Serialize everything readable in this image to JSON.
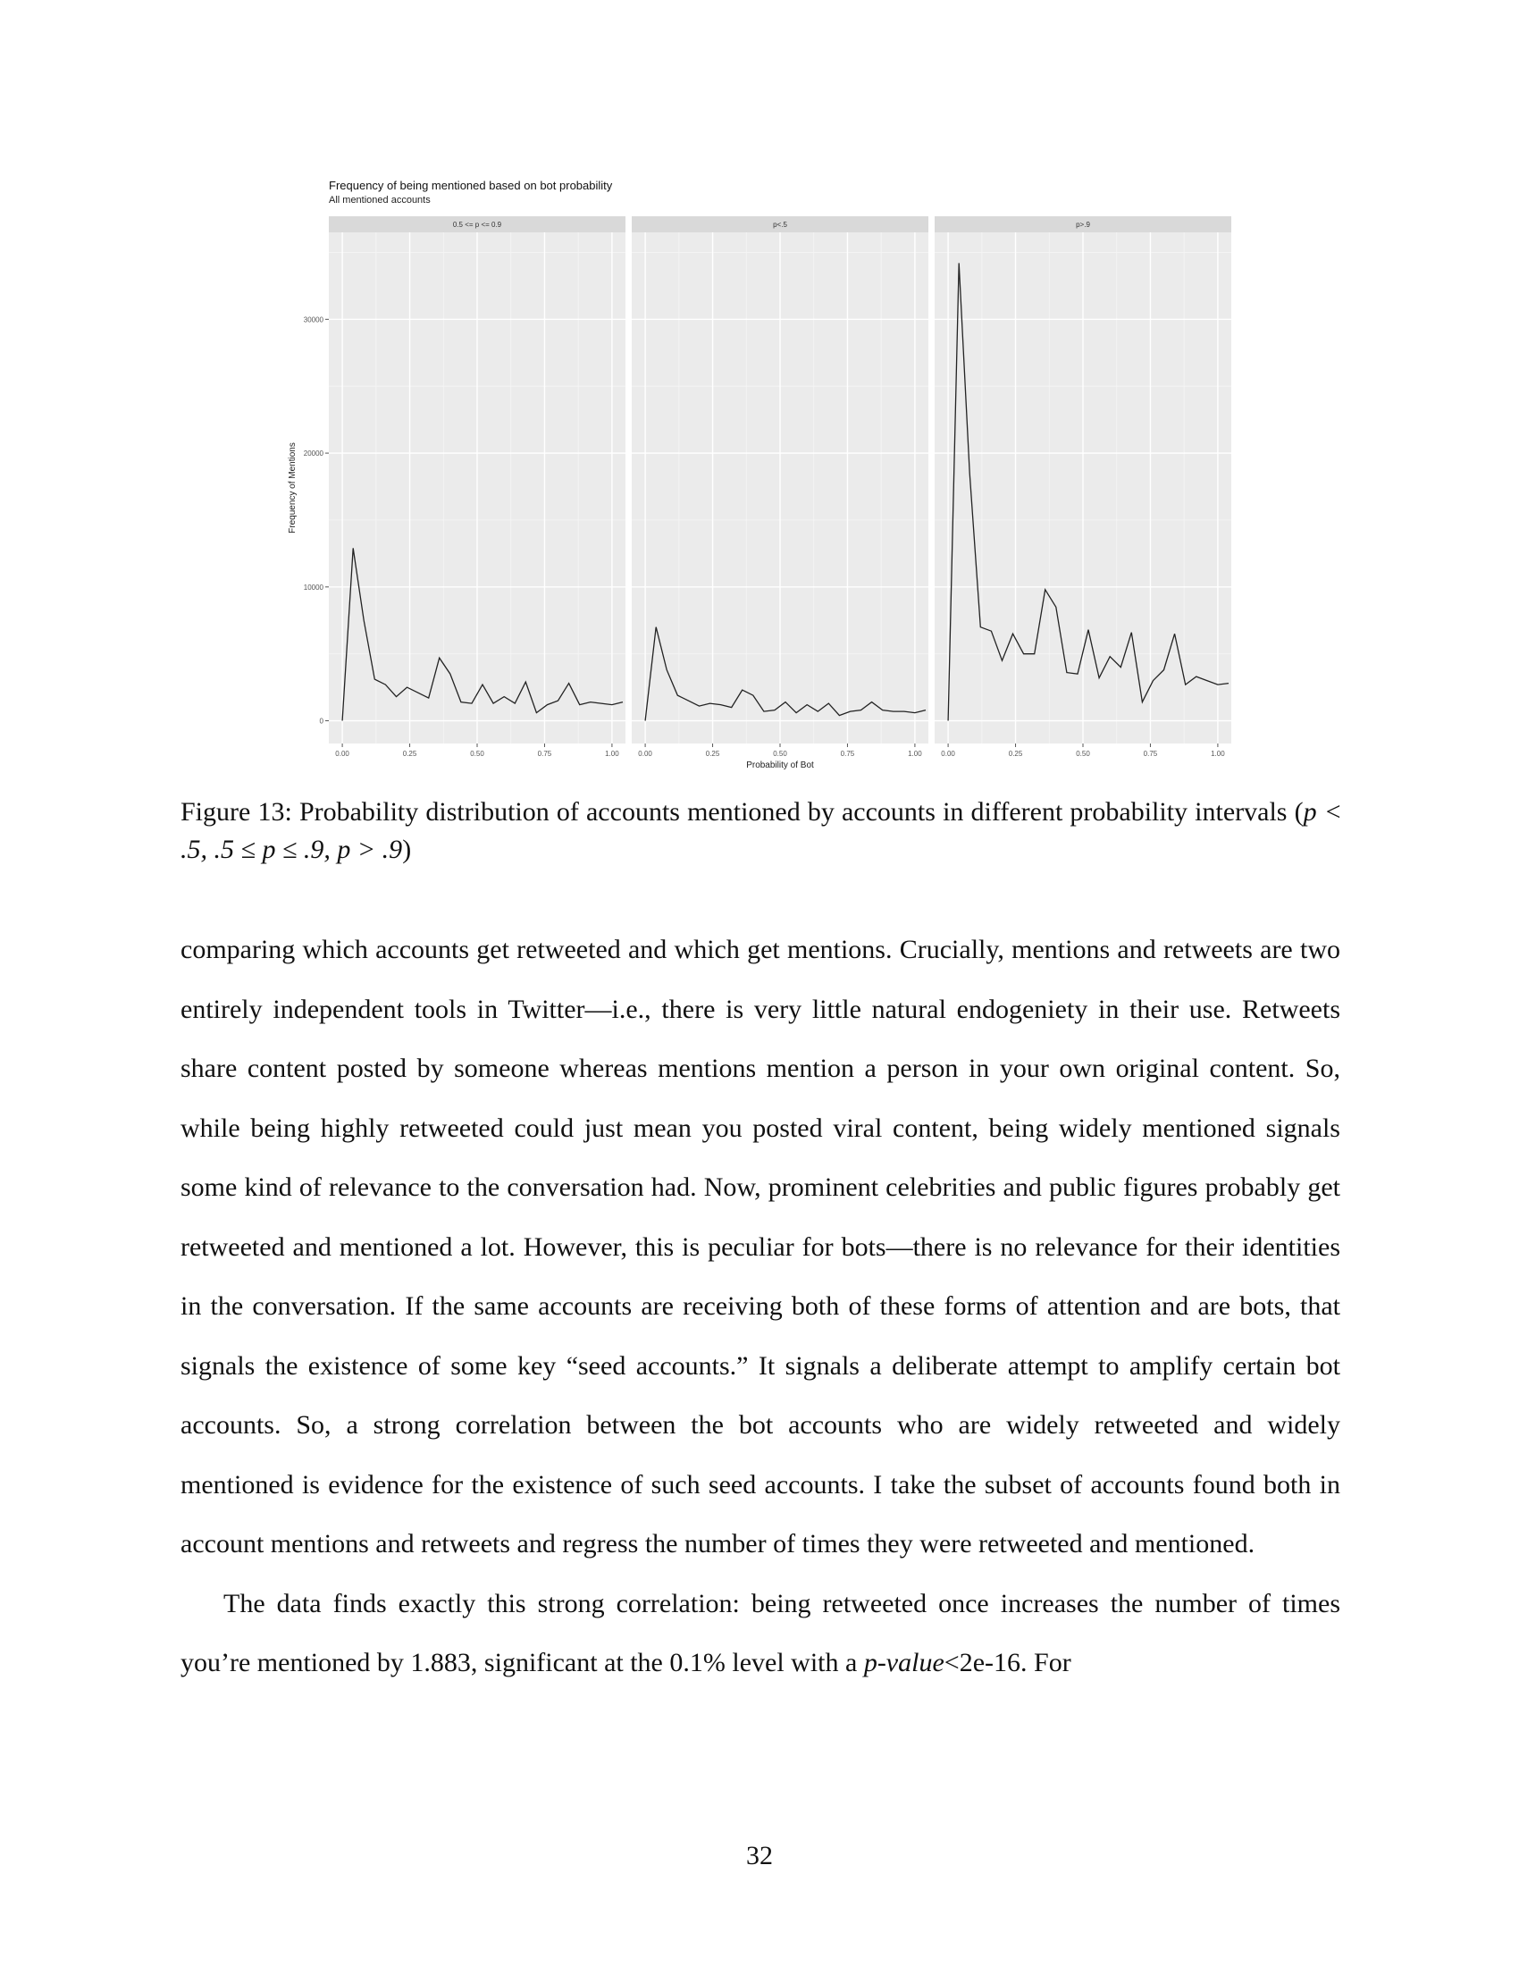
{
  "figure": {
    "title": "Frequency of being mentioned based on bot probability",
    "subtitle": "All mentioned accounts",
    "xlabel": "Probability of Bot",
    "ylabel": "Frequency of Mentions"
  },
  "chart_data": {
    "type": "line",
    "title": "Frequency of being mentioned based on bot probability",
    "subtitle": "All mentioned accounts",
    "xlabel": "Probability of Bot",
    "ylabel": "Frequency of Mentions",
    "xlim": [
      -0.05,
      1.05
    ],
    "ylim": [
      -1700,
      36500
    ],
    "x_ticks": [
      "0.00",
      "0.25",
      "0.50",
      "0.75",
      "1.00"
    ],
    "y_ticks": [
      0,
      10000,
      20000,
      30000
    ],
    "y_tick_labels": [
      "0",
      "10000",
      "20000",
      "30000"
    ],
    "grid": true,
    "panels": [
      {
        "label": "0.5 <= p <= 0.9",
        "x": [
          0,
          0.04,
          0.08,
          0.12,
          0.16,
          0.2,
          0.24,
          0.28,
          0.32,
          0.36,
          0.4,
          0.44,
          0.48,
          0.52,
          0.56,
          0.6,
          0.64,
          0.68,
          0.72,
          0.76,
          0.8,
          0.84,
          0.88,
          0.92,
          0.96,
          1.0,
          1.04
        ],
        "values": [
          0,
          12900,
          7500,
          3100,
          2700,
          1800,
          2500,
          2100,
          1700,
          4700,
          3500,
          1400,
          1300,
          2700,
          1300,
          1800,
          1300,
          2900,
          600,
          1200,
          1500,
          2800,
          1200,
          1400,
          1300,
          1200,
          1400
        ]
      },
      {
        "label": "p<.5",
        "x": [
          0,
          0.04,
          0.08,
          0.12,
          0.16,
          0.2,
          0.24,
          0.28,
          0.32,
          0.36,
          0.4,
          0.44,
          0.48,
          0.52,
          0.56,
          0.6,
          0.64,
          0.68,
          0.72,
          0.76,
          0.8,
          0.84,
          0.88,
          0.92,
          0.96,
          1.0,
          1.04
        ],
        "values": [
          0,
          7000,
          3800,
          1900,
          1500,
          1100,
          1300,
          1200,
          1000,
          2300,
          1900,
          700,
          800,
          1400,
          600,
          1200,
          700,
          1300,
          400,
          700,
          800,
          1400,
          800,
          700,
          700,
          600,
          800
        ]
      },
      {
        "label": "p>.9",
        "x": [
          0,
          0.04,
          0.08,
          0.12,
          0.16,
          0.2,
          0.24,
          0.28,
          0.32,
          0.36,
          0.4,
          0.44,
          0.48,
          0.52,
          0.56,
          0.6,
          0.64,
          0.68,
          0.72,
          0.76,
          0.8,
          0.84,
          0.88,
          0.92,
          0.96,
          1.0,
          1.04
        ],
        "values": [
          0,
          34200,
          18500,
          7000,
          6700,
          4500,
          6500,
          5000,
          5000,
          9800,
          8500,
          3600,
          3500,
          6800,
          3200,
          4800,
          4000,
          6600,
          1400,
          3000,
          3800,
          6500,
          2700,
          3300,
          3000,
          2700,
          2800
        ]
      }
    ]
  },
  "caption": {
    "label": "Figure 13:",
    "text": "Probability distribution of accounts mentioned by accounts in different probability intervals (",
    "math": "p < .5, .5 ≤ p ≤ .9, p > .9",
    "close": ")"
  },
  "body": {
    "para1": "comparing which accounts get retweeted and which get mentions. Crucially, mentions and retweets are two entirely independent tools in Twitter—i.e., there is very little natural endogeniety in their use. Retweets share content posted by someone whereas mentions mention a person in your own original content. So, while being highly retweeted could just mean you posted viral content, being widely mentioned signals some kind of relevance to the conversation had. Now, prominent celebrities and public figures probably get retweeted and mentioned a lot. However, this is peculiar for bots—there is no relevance for their identities in the conversation. If the same accounts are receiving both of these forms of attention and are bots, that signals the existence of some key “seed accounts.” It signals a deliberate attempt to amplify certain bot accounts. So, a strong correlation between the bot accounts who are widely retweeted and widely mentioned is evidence for the existence of such seed accounts. I take the subset of accounts found both in account mentions and retweets and regress the number of times they were retweeted and mentioned.",
    "para2_start": "The data finds exactly this strong correlation: being retweeted once increases the number of times you’re mentioned by 1.883, significant at the 0.1% level with a ",
    "para2_pvalue": "p-value",
    "para2_end": "<2e-16. For"
  },
  "page_number": "32"
}
